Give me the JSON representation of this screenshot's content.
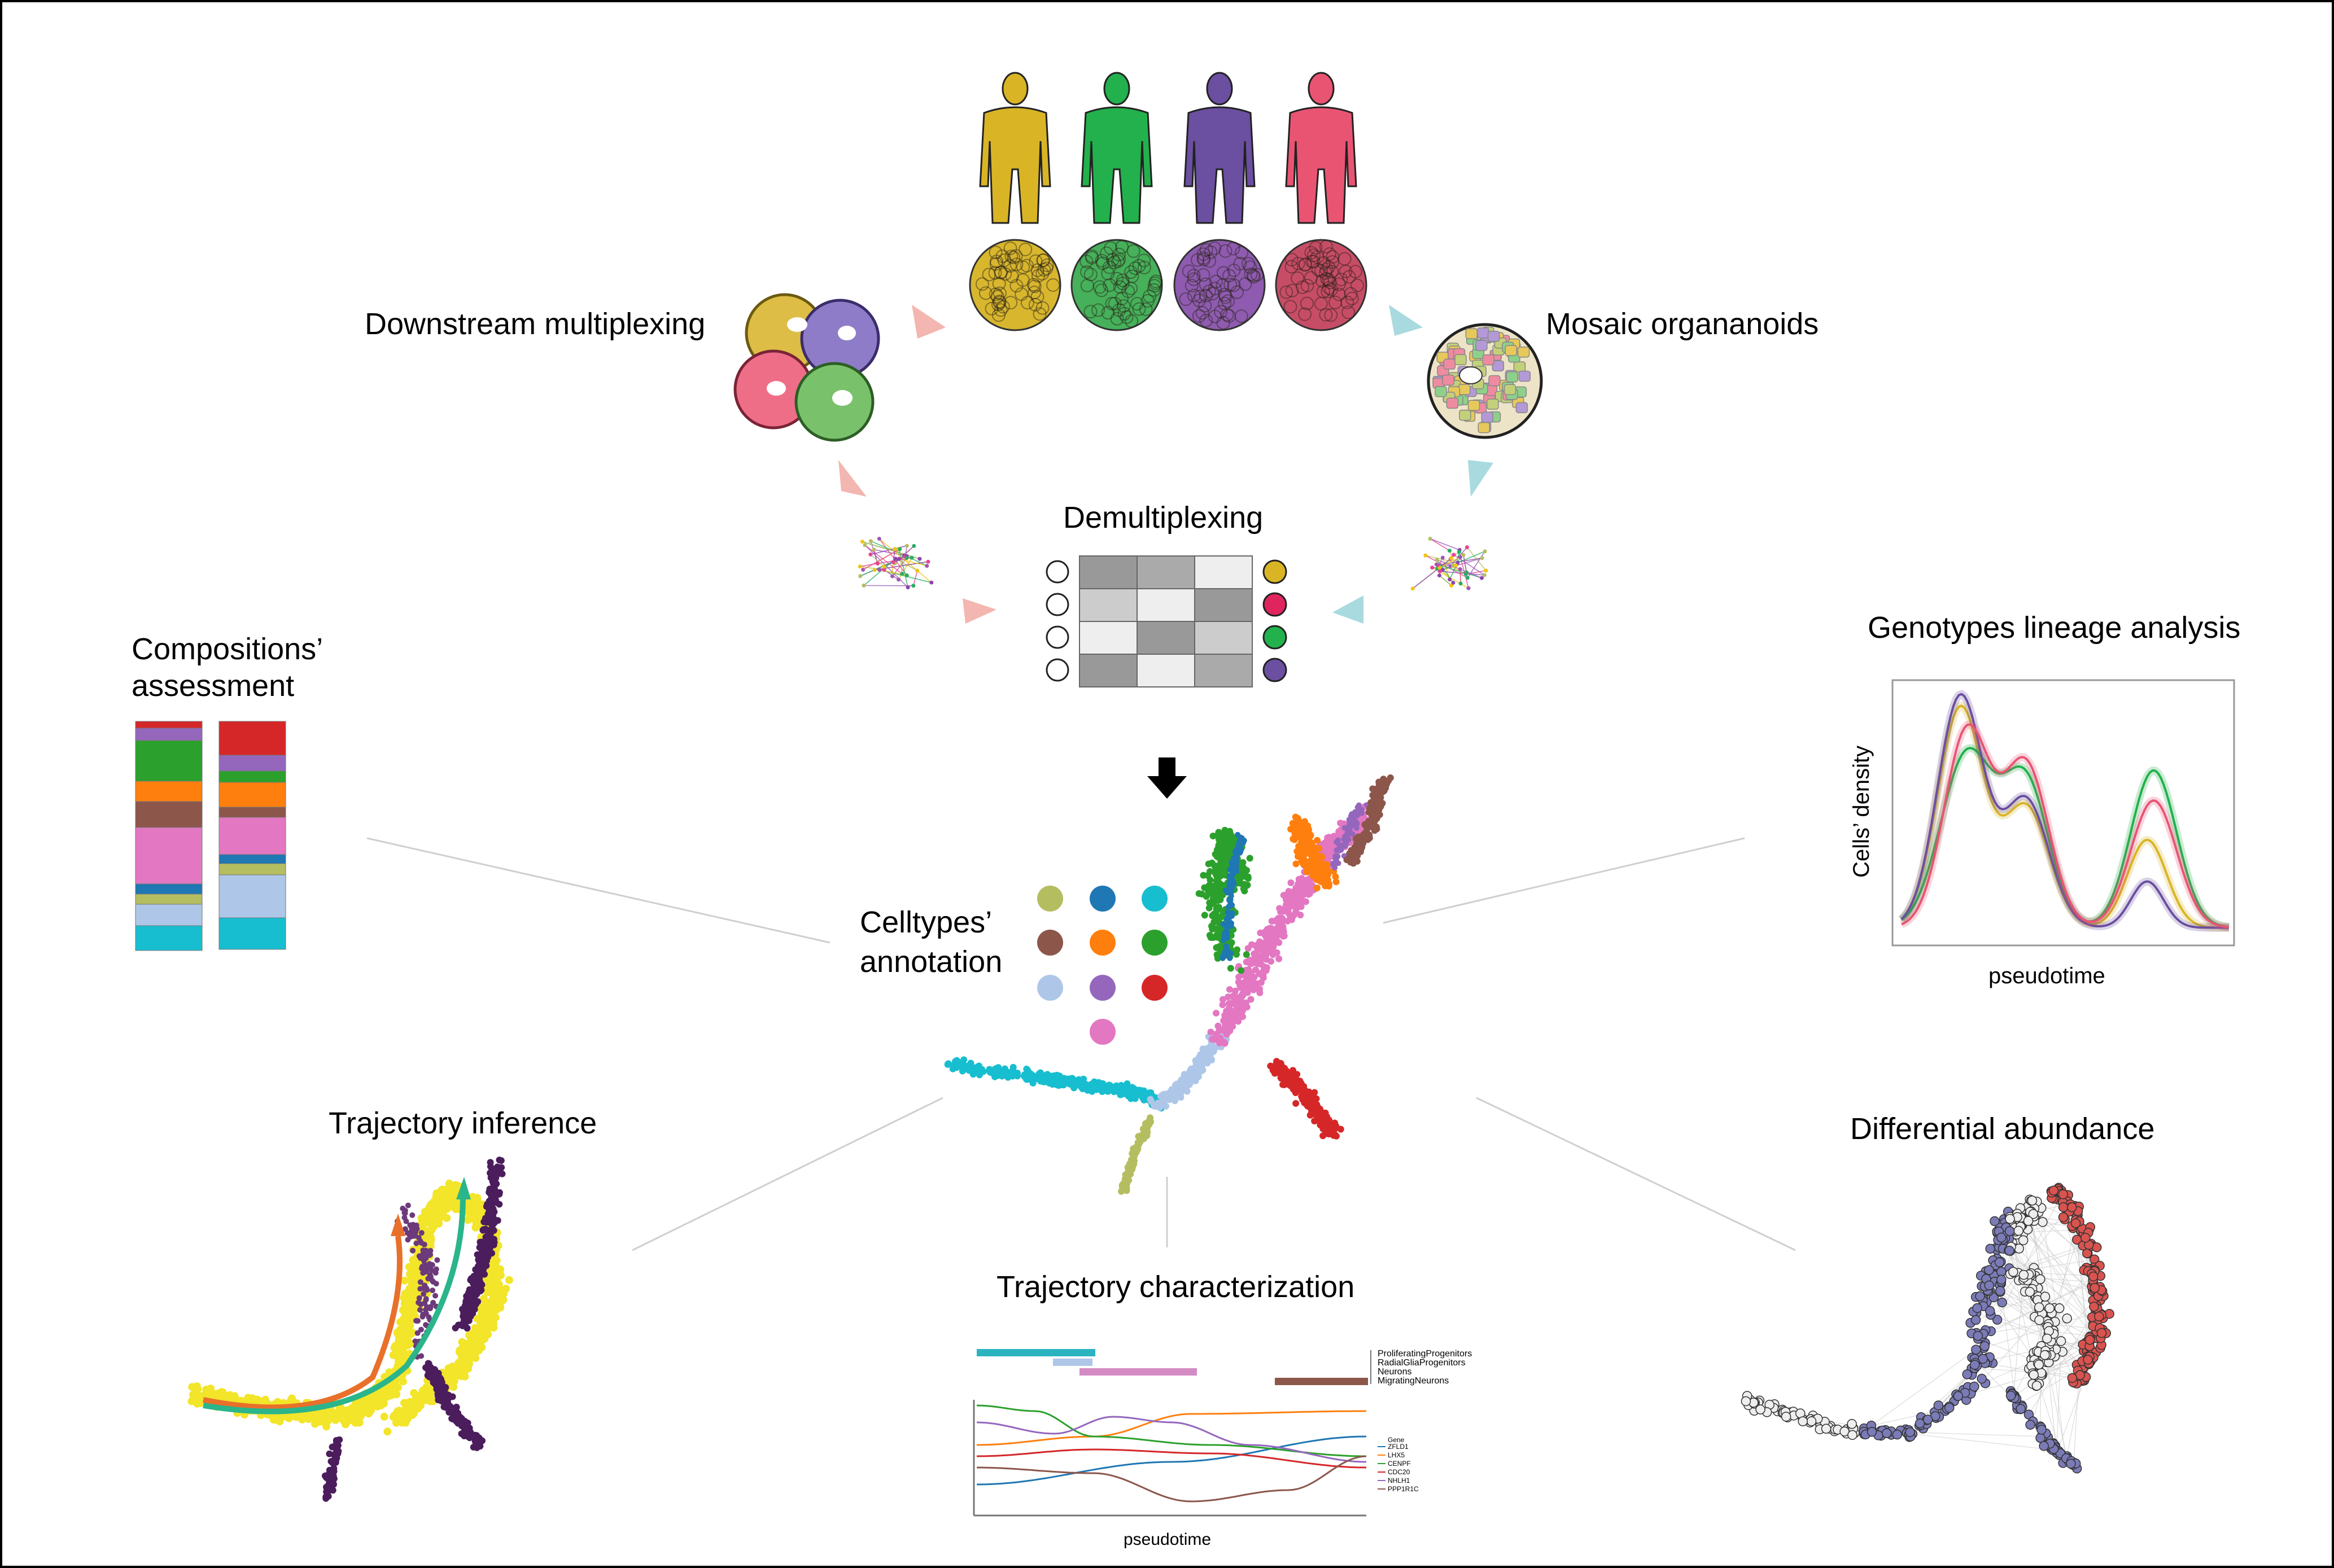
{
  "labels": {
    "downstream": "Downstream multiplexing",
    "mosaic": "Mosaic organanoids",
    "demultiplexing": "Demultiplexing",
    "compositions_line1": "Compositions’",
    "compositions_line2": "assessment",
    "genotypes": "Genotypes lineage analysis",
    "celltypes_line1": "Celltypes’",
    "celltypes_line2": "annotation",
    "trajectory_inference": "Trajectory inference",
    "trajectory_characterization": "Trajectory characterization",
    "differential_abundance": "Differential abundance"
  },
  "genotype_plot": {
    "ylabel": "Cells’ density",
    "xlabel": "pseudotime"
  },
  "trajectory_plot": {
    "xlabel": "pseudotime",
    "stages": [
      "ProliferatingProgenitors",
      "RadialGliaProgenitors",
      "Neurons",
      "MigratingNeurons"
    ],
    "gene_header": "Gene",
    "genes": [
      "ZFLD1",
      "LHX5",
      "CENPF",
      "CDC20",
      "NHLH1",
      "PPP1R1C"
    ]
  },
  "colors": {
    "donor_yellow": "#D9B526",
    "donor_green": "#22B14C",
    "donor_purple": "#6B4FA0",
    "donor_red": "#E95473",
    "arrow_pink": "#F4B6B0",
    "arrow_blue": "#A8DADF"
  },
  "celltype_colors": [
    "#B5BD61",
    "#1F77B4",
    "#17BECF",
    "#8C564B",
    "#FF7F0E",
    "#2CA02C",
    "#AEC7E8",
    "#9467BD",
    "#D62728",
    "#E377C2"
  ]
}
